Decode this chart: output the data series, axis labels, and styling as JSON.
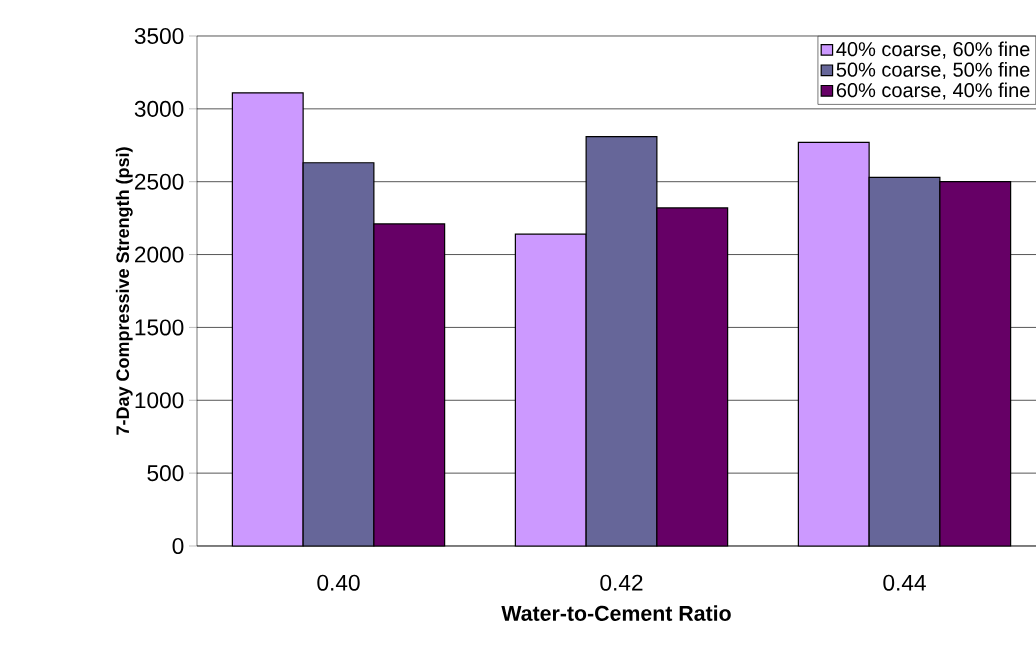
{
  "chart_data": {
    "type": "bar",
    "xlabel": "Water-to-Cement Ratio",
    "ylabel": "7-Day Compressive Strength (psi)",
    "categories": [
      "0.40",
      "0.42",
      "0.44"
    ],
    "series": [
      {
        "name": "40% coarse, 60% fine",
        "color": "#cc99ff",
        "values": [
          3110,
          2140,
          2770
        ]
      },
      {
        "name": "50% coarse, 50% fine",
        "color": "#666699",
        "values": [
          2630,
          2810,
          2530
        ]
      },
      {
        "name": "60% coarse, 40% fine",
        "color": "#660066",
        "values": [
          2210,
          2320,
          2500
        ]
      }
    ],
    "ylim": [
      0,
      3500
    ],
    "yticks": [
      0,
      500,
      1000,
      1500,
      2000,
      2500,
      3000,
      3500
    ],
    "grid": "y",
    "legend": "top right"
  }
}
